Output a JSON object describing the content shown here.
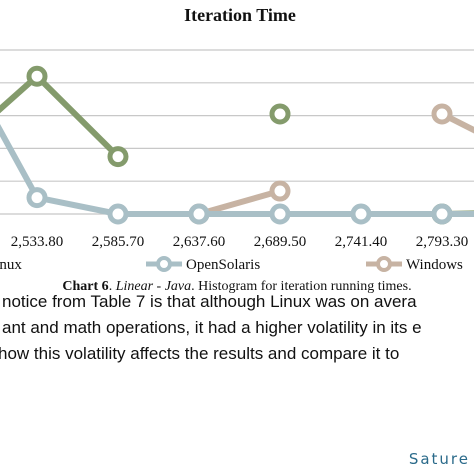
{
  "chart_data": {
    "type": "line",
    "title": "Iteration Time",
    "categories": [
      "",
      "2,533.80",
      "2,585.70",
      "2,637.60",
      "2,689.50",
      "2,741.40",
      "2,793.30",
      ""
    ],
    "series": [
      {
        "name": "Linux",
        "color": "#849b6c",
        "values": [
          4,
          8.4,
          3.5,
          null,
          6.1,
          null,
          0,
          0.1
        ]
      },
      {
        "name": "OpenSolaris",
        "color": "#a9bfc6",
        "values": [
          10,
          1,
          0,
          0,
          0,
          0,
          0,
          0
        ]
      },
      {
        "name": "Windows",
        "color": "#c7b3a3",
        "values": [
          null,
          null,
          null,
          0,
          1.4,
          null,
          6.1,
          3.6
        ]
      }
    ],
    "ylim": [
      0,
      10
    ],
    "grid": true,
    "legend": "bottom",
    "xlabel": "",
    "ylabel": ""
  },
  "caption": {
    "label": "Chart 6",
    "sep": ". ",
    "italic": "Linear - Java",
    "rest": ". Histogram for iteration running times."
  },
  "body_text": [
    "notice from Table 7 is that although Linux was on avera",
    "ant and math operations, it had a higher volatility in its e",
    " how this volatility affects the results and compare it to"
  ],
  "footer": "Sature"
}
